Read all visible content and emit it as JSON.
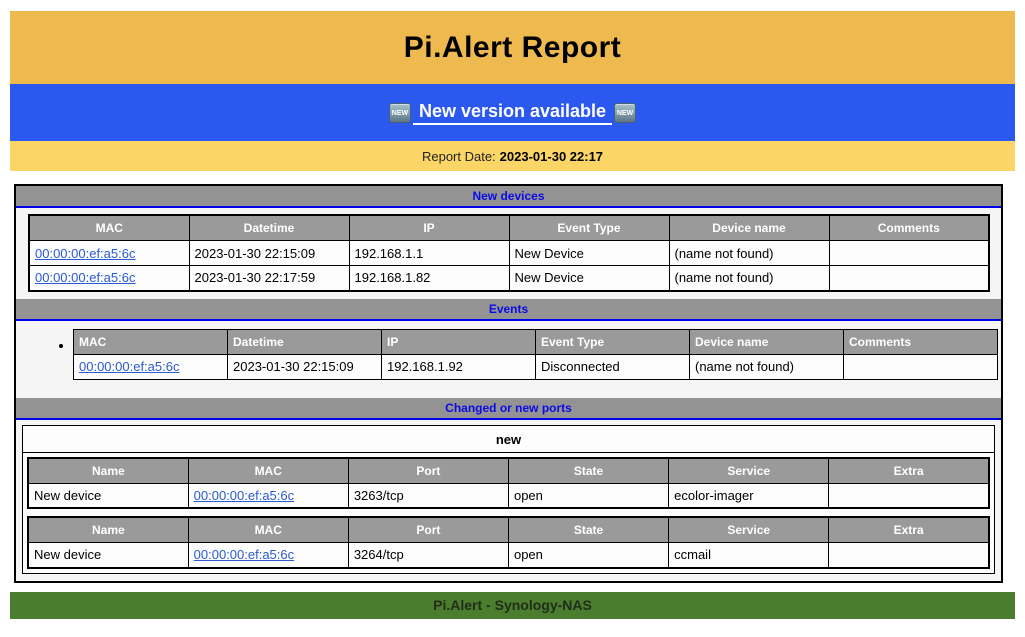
{
  "header": {
    "title": "Pi.Alert Report"
  },
  "banner": {
    "badge_label": "NEW",
    "link_label": "New version available"
  },
  "report_date": {
    "label": "Report Date:",
    "value": "2023-01-30 22:17"
  },
  "sections": {
    "new_devices": {
      "title": "New devices",
      "columns": [
        "MAC",
        "Datetime",
        "IP",
        "Event Type",
        "Device name",
        "Comments"
      ],
      "rows": [
        {
          "mac": "00:00:00:ef:a5:6c",
          "datetime": "2023-01-30 22:15:09",
          "ip": "192.168.1.1",
          "event_type": "New Device",
          "device_name": "(name not found)",
          "comments": ""
        },
        {
          "mac": "00:00:00:ef:a5:6c",
          "datetime": "2023-01-30 22:17:59",
          "ip": "192.168.1.82",
          "event_type": "New Device",
          "device_name": "(name not found)",
          "comments": ""
        }
      ]
    },
    "events": {
      "title": "Events",
      "columns": [
        "MAC",
        "Datetime",
        "IP",
        "Event Type",
        "Device name",
        "Comments"
      ],
      "rows": [
        {
          "mac": "00:00:00:ef:a5:6c",
          "datetime": "2023-01-30 22:15:09",
          "ip": "192.168.1.92",
          "event_type": "Disconnected",
          "device_name": "(name not found)",
          "comments": ""
        }
      ]
    },
    "ports": {
      "title": "Changed or new ports",
      "group_label": "new",
      "columns": [
        "Name",
        "MAC",
        "Port",
        "State",
        "Service",
        "Extra"
      ],
      "tables": [
        {
          "rows": [
            {
              "name": "New device",
              "mac": "00:00:00:ef:a5:6c",
              "port": "3263/tcp",
              "state": "open",
              "service": "ecolor-imager",
              "extra": ""
            }
          ]
        },
        {
          "rows": [
            {
              "name": "New device",
              "mac": "00:00:00:ef:a5:6c",
              "port": "3264/tcp",
              "state": "open",
              "service": "ccmail",
              "extra": ""
            }
          ]
        }
      ]
    }
  },
  "footer": {
    "label": "Pi.Alert - Synology-NAS"
  },
  "colors": {
    "masthead_orange": "#eeba4f",
    "banner_blue": "#2b58ef",
    "date_yellow": "#fbd666",
    "section_gray": "#939393",
    "section_title_blue": "#0b0be6",
    "section_underline_blue": "#0000e8",
    "table_header_gray": "#9a9a9a",
    "link_blue": "#2a5bd0",
    "footer_green": "#4a7e2e"
  }
}
